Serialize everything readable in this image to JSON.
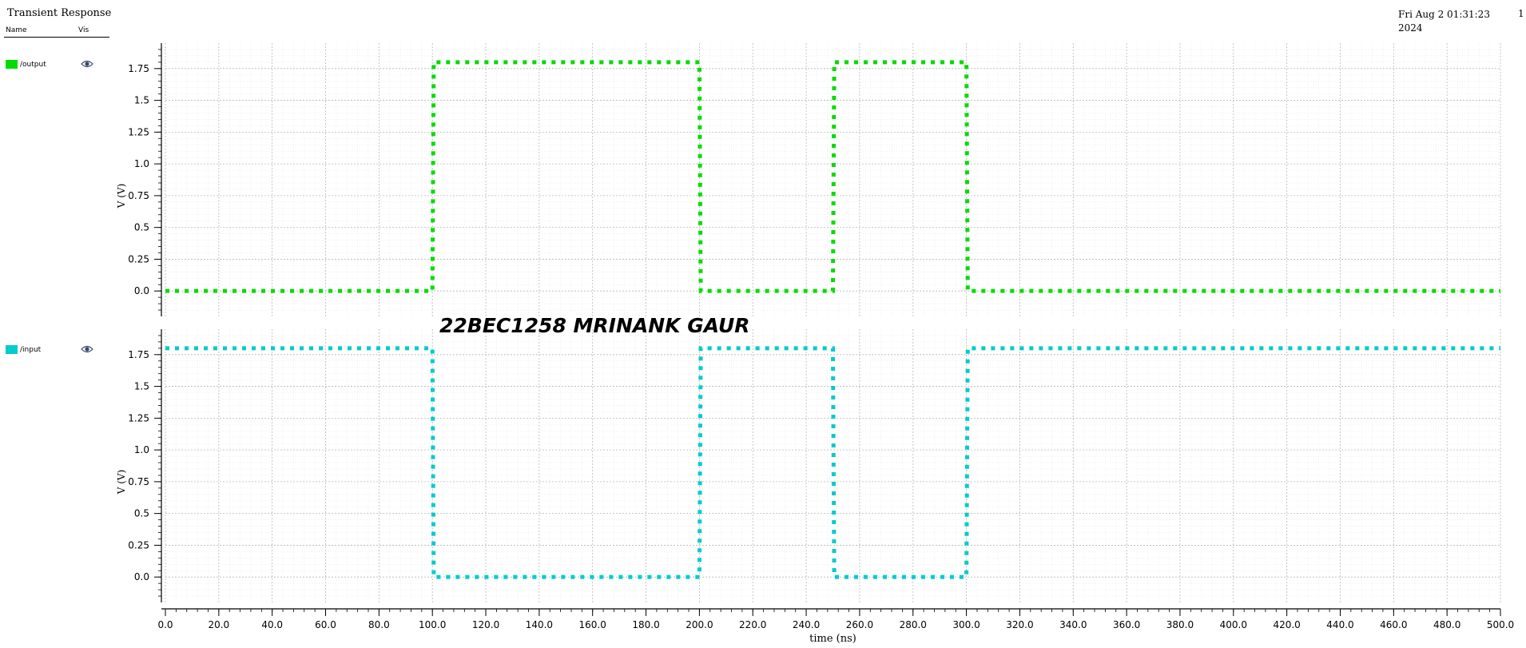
{
  "header": {
    "title": "Transient Response",
    "timestamp_line1": "Fri Aug 2 01:31:23",
    "timestamp_line2": "2024",
    "page_number": "1"
  },
  "legend": {
    "name_header": "Name",
    "vis_header": "Vis",
    "items": [
      {
        "label": "/output",
        "color": "#00dd00",
        "icon": "eye-icon"
      },
      {
        "label": "/input",
        "color": "#00cccc",
        "icon": "eye-icon"
      }
    ]
  },
  "annotation": "22BEC1258 MRINANK GAUR",
  "chart_data": {
    "type": "line",
    "xlabel": "time (ns)",
    "xlim": [
      0,
      500
    ],
    "x_ticks": [
      "0.0",
      "20.0",
      "40.0",
      "60.0",
      "80.0",
      "100.0",
      "120.0",
      "140.0",
      "160.0",
      "180.0",
      "200.0",
      "220.0",
      "240.0",
      "260.0",
      "280.0",
      "300.0",
      "320.0",
      "340.0",
      "360.0",
      "380.0",
      "400.0",
      "420.0",
      "440.0",
      "460.0",
      "480.0",
      "500.0"
    ],
    "grid": true,
    "panels": [
      {
        "name": "/output",
        "ylabel": "V (V)",
        "ylim": [
          -0.2,
          1.95
        ],
        "y_ticks": [
          "0.0",
          "0.25",
          "0.5",
          "0.75",
          "1.0",
          "1.25",
          "1.5",
          "1.75"
        ],
        "color": "#00dd00",
        "x": [
          0,
          100,
          100.5,
          200,
          200.5,
          250,
          250.5,
          300,
          300.5,
          500
        ],
        "y": [
          0,
          0,
          1.8,
          1.8,
          0,
          0,
          1.8,
          1.8,
          0,
          0
        ]
      },
      {
        "name": "/input",
        "ylabel": "V (V)",
        "ylim": [
          -0.2,
          1.95
        ],
        "y_ticks": [
          "0.0",
          "0.25",
          "0.5",
          "0.75",
          "1.0",
          "1.25",
          "1.5",
          "1.75"
        ],
        "color": "#00cccc",
        "x": [
          0,
          100,
          100.5,
          200,
          200.5,
          250,
          250.5,
          300,
          300.5,
          500
        ],
        "y": [
          1.8,
          1.8,
          0,
          0,
          1.8,
          1.8,
          0,
          0,
          1.8,
          1.8
        ]
      }
    ]
  }
}
